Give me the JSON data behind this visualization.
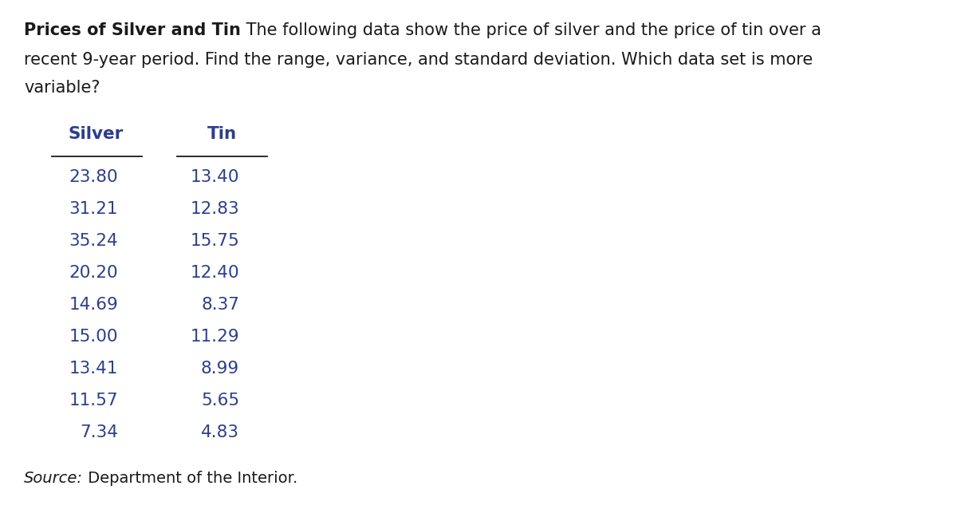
{
  "title_bold": "Prices of Silver and Tin",
  "title_line2": "recent 9-year period. Find the range, variance, and standard deviation. Which data set is more",
  "title_line1_rest": " The following data show the price of silver and the price of tin over a",
  "title_line3": "variable?",
  "col1_header": "Silver",
  "col2_header": "Tin",
  "silver": [
    "23.80",
    "31.21",
    "35.24",
    "20.20",
    "14.69",
    "15.00",
    "13.41",
    "11.57",
    "7.34"
  ],
  "tin": [
    "13.40",
    "12.83",
    "15.75",
    "12.40",
    "8.37",
    "11.29",
    "8.99",
    "5.65",
    "4.83"
  ],
  "source_italic": "Source:",
  "source_normal": " Department of the Interior.",
  "bg_color": "#ffffff",
  "text_color": "#1a1a1a",
  "header_color": "#2c3e8c",
  "body_color": "#2c3e8c",
  "title_fontsize": 15,
  "header_fontsize": 15.5,
  "body_fontsize": 15.5,
  "source_fontsize": 14,
  "fig_width": 12.0,
  "fig_height": 6.63,
  "dpi": 100
}
